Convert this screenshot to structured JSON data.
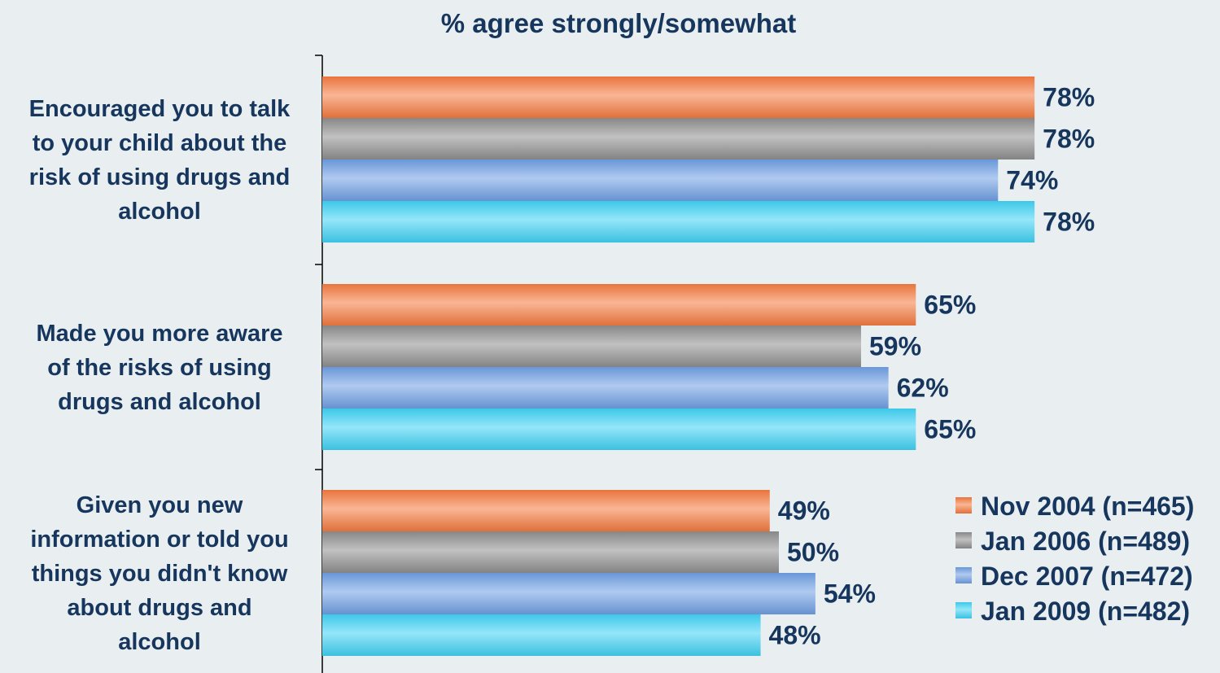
{
  "chart_data": {
    "type": "bar",
    "orientation": "horizontal",
    "title": "% agree strongly/somewhat",
    "xlabel": "",
    "ylabel": "",
    "xlim": [
      0,
      100
    ],
    "grid": false,
    "legend_position": "bottom-right",
    "categories": [
      [
        "Encouraged you to talk",
        "to your child about the",
        "risk of using drugs and",
        "alcohol"
      ],
      [
        "Made you more aware",
        "of the risks of using",
        "drugs and alcohol"
      ],
      [
        "Given you new",
        "information or told you",
        "things you didn't know",
        "about drugs and",
        "alcohol"
      ]
    ],
    "series": [
      {
        "name": "Nov 2004 (n=465)",
        "color": "#f47a3f",
        "values": [
          78,
          65,
          49
        ]
      },
      {
        "name": "Jan 2006 (n=489)",
        "color": "#8e8e8e",
        "values": [
          78,
          59,
          50
        ]
      },
      {
        "name": "Dec 2007 (n=472)",
        "color": "#6f9fe3",
        "values": [
          74,
          62,
          54
        ]
      },
      {
        "name": "Jan 2009 (n=482)",
        "color": "#3fd2f4",
        "values": [
          78,
          65,
          48
        ]
      }
    ],
    "value_suffix": "%"
  }
}
